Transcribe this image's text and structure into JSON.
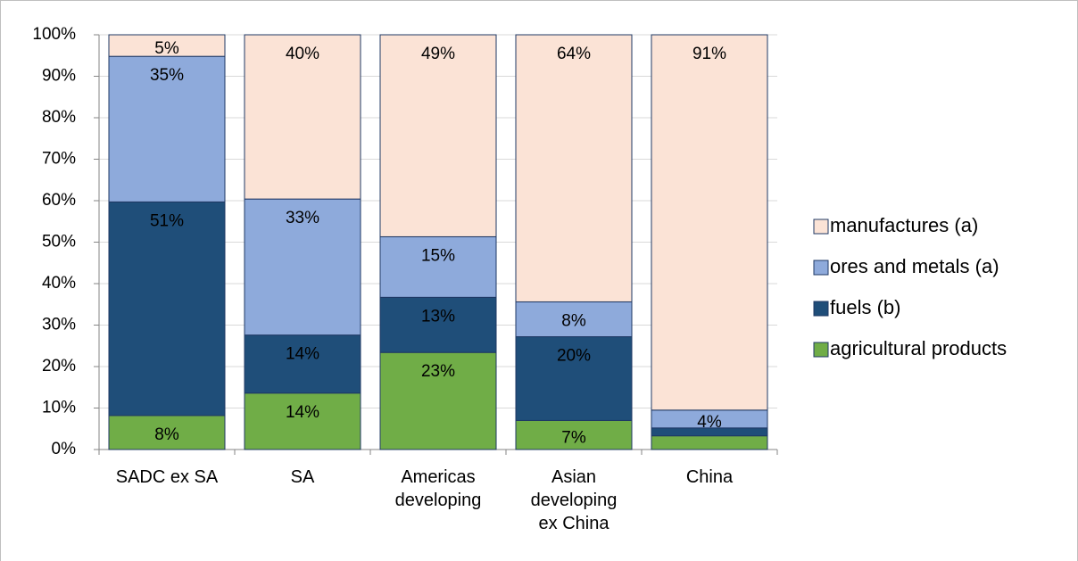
{
  "chart_data": {
    "type": "stacked-bar",
    "categories": [
      "SADC ex SA",
      "SA",
      "Americas developing",
      "Asian developing ex China",
      "China"
    ],
    "series": [
      {
        "name": "agricultural products",
        "color": "#70ad47",
        "label_color": "#000000",
        "values": [
          8.2,
          13.6,
          23.4,
          7.0,
          3.3
        ],
        "value_labels": [
          "8%",
          "14%",
          "23%",
          "7%",
          null
        ]
      },
      {
        "name": "fuels (b)",
        "color": "#1f4e79",
        "label_color": "#ffffff",
        "values": [
          51.5,
          14.0,
          13.3,
          20.2,
          1.9
        ],
        "value_labels": [
          "51%",
          "14%",
          "13%",
          "20%",
          null
        ]
      },
      {
        "name": "ores and metals (a)",
        "color": "#8eaadb",
        "label_color": "#000000",
        "values": [
          35.1,
          32.8,
          14.6,
          8.4,
          4.3
        ],
        "value_labels": [
          "35%",
          "33%",
          "15%",
          "8%",
          "4%"
        ]
      },
      {
        "name": "manufactures (a)",
        "color": "#fbe3d6",
        "label_color": "#000000",
        "values": [
          5.2,
          39.6,
          48.7,
          64.4,
          90.5
        ],
        "value_labels": [
          "5%",
          "40%",
          "49%",
          "64%",
          "91%"
        ]
      }
    ],
    "ylim": [
      0,
      100
    ],
    "yticks": [
      {
        "value": 0,
        "label": "0%"
      },
      {
        "value": 10,
        "label": "10%"
      },
      {
        "value": 20,
        "label": "20%"
      },
      {
        "value": 30,
        "label": "30%"
      },
      {
        "value": 40,
        "label": "40%"
      },
      {
        "value": 50,
        "label": "50%"
      },
      {
        "value": 60,
        "label": "60%"
      },
      {
        "value": 70,
        "label": "70%"
      },
      {
        "value": 80,
        "label": "80%"
      },
      {
        "value": 90,
        "label": "90%"
      },
      {
        "value": 100,
        "label": "100%"
      }
    ],
    "grid": true,
    "legend": "right"
  }
}
